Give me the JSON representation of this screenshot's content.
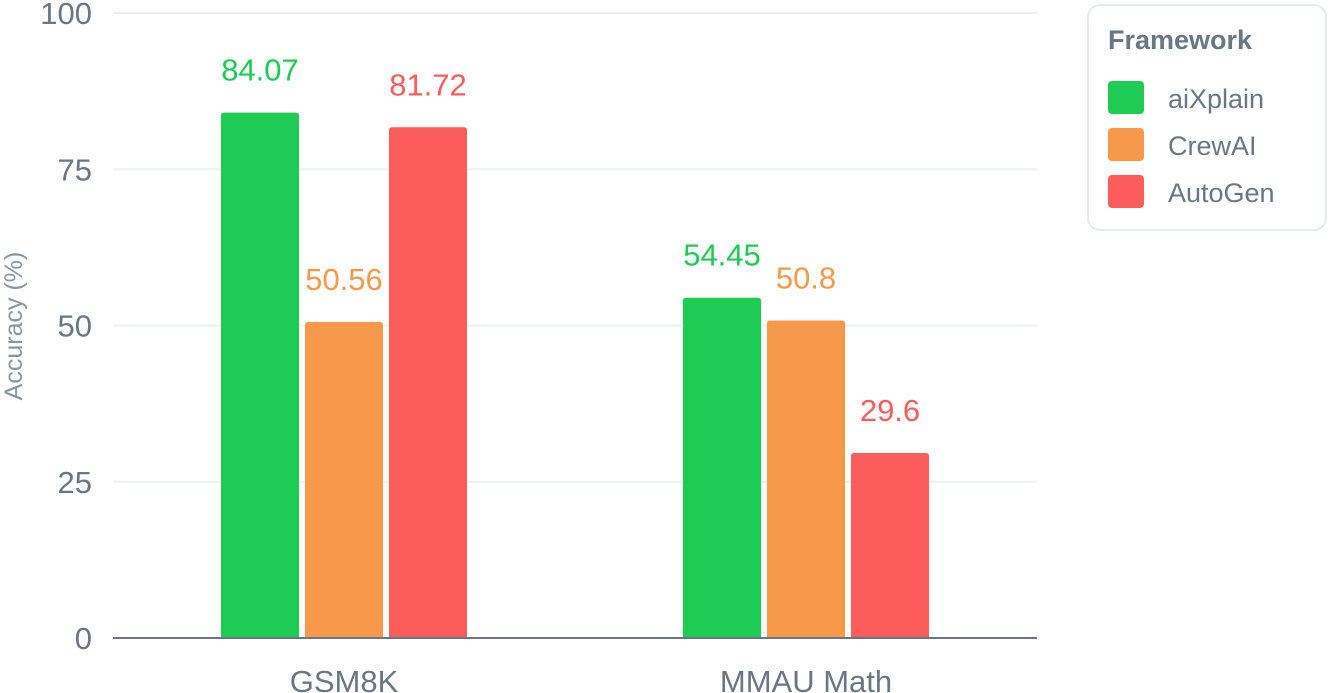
{
  "chart_data": {
    "type": "bar",
    "categories": [
      "GSM8K",
      "MMAU Math"
    ],
    "series": [
      {
        "name": "aiXplain",
        "color": "#1ecb54",
        "values": [
          84.07,
          54.45
        ]
      },
      {
        "name": "CrewAI",
        "color": "#f7994b",
        "values": [
          50.56,
          50.8
        ]
      },
      {
        "name": "AutoGen",
        "color": "#fd5c5c",
        "values": [
          81.72,
          29.6
        ]
      }
    ],
    "ylabel": "Accuracy (%)",
    "xlabel": "",
    "ylim": [
      0,
      100
    ],
    "yticks": [
      0,
      25,
      50,
      75,
      100
    ],
    "grid": true,
    "legend": {
      "title": "Framework",
      "position": "top-right"
    },
    "data_labels": true
  }
}
